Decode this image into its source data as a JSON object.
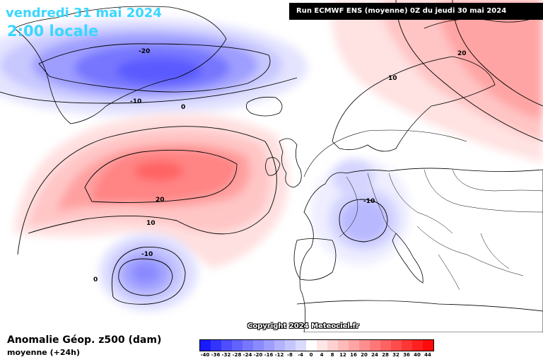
{
  "header": {
    "date": "vendredi 31 mai 2024",
    "time": "2:00 locale",
    "run": "Run ECMWF ENS (moyenne) 0Z du jeudi 30 mai 2024"
  },
  "copyright": "Copyright 2024 Meteociel.fr",
  "legend": {
    "title": "Anomalie Géop. z500 (dam)",
    "subtitle": "moyenne   (+24h)",
    "levels": [
      "-40",
      "-36",
      "-32",
      "-28",
      "-24",
      "-20",
      "-16",
      "-12",
      "-8",
      "-4",
      "0",
      "4",
      "8",
      "12",
      "16",
      "20",
      "24",
      "28",
      "32",
      "36",
      "40",
      "44"
    ],
    "colors": [
      "#1a1aff",
      "#3434ff",
      "#4e4eff",
      "#6262ff",
      "#7676ff",
      "#8a8aff",
      "#9e9eff",
      "#b2b2ff",
      "#c6c6ff",
      "#dadaff",
      "#ffffff",
      "#ffe6e6",
      "#ffd0d0",
      "#ffbaba",
      "#ffa4a4",
      "#ff8e8e",
      "#ff7878",
      "#ff6262",
      "#ff4c4c",
      "#ff3636",
      "#ff2020",
      "#ff0a0a"
    ]
  },
  "contour_labels": [
    {
      "id": "greenland-minus20",
      "text": "-20"
    },
    {
      "id": "greenland-minus10",
      "text": "-10"
    },
    {
      "id": "greenland-zero",
      "text": "0"
    },
    {
      "id": "scandinavia-10",
      "text": "10"
    },
    {
      "id": "scandinavia-20",
      "text": "20"
    },
    {
      "id": "atlantic-20",
      "text": "20"
    },
    {
      "id": "atlantic-10",
      "text": "10"
    },
    {
      "id": "atlantic-low-minus10",
      "text": "-10"
    },
    {
      "id": "atlantic-low-zero",
      "text": "0"
    },
    {
      "id": "europe-minus10",
      "text": "-10"
    }
  ]
}
